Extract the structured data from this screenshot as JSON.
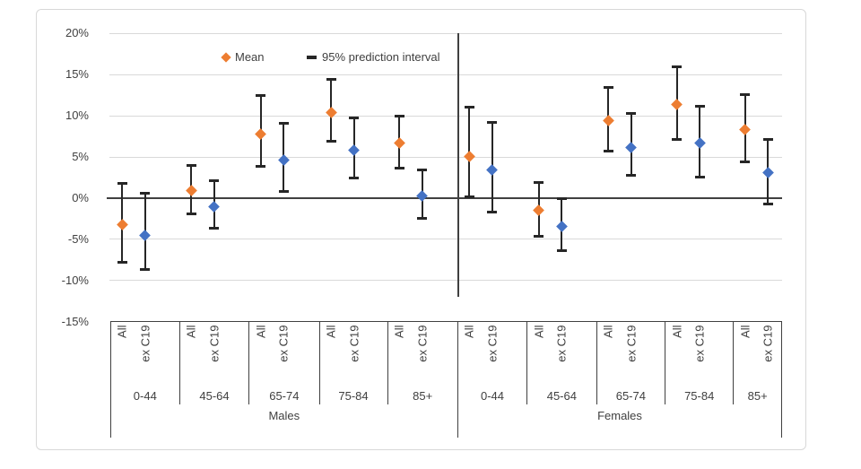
{
  "legend": {
    "mean_label": "Mean",
    "interval_label": "95% prediction interval"
  },
  "y_axis": {
    "tick_labels": [
      "20%",
      "15%",
      "10%",
      "5%",
      "0%",
      "-5%",
      "-10%",
      "-15%"
    ],
    "tick_values": [
      20,
      15,
      10,
      5,
      0,
      -5,
      -10,
      -15
    ]
  },
  "colors": {
    "mean_all": "#ED7D31",
    "mean_ex_c19": "#4472C4",
    "error_bar": "#262626",
    "gridline": "#d9d9d9",
    "axis_line": "#404040",
    "text": "#404040"
  },
  "chart_data": {
    "type": "scatter",
    "title": "",
    "legend_entries": [
      "Mean",
      "95% prediction interval"
    ],
    "legend_position": "top-left-inside",
    "grid": true,
    "ylim": [
      -15,
      20
    ],
    "y_tick_percent": [
      20,
      15,
      10,
      5,
      0,
      -5,
      -10,
      -15
    ],
    "series_categories": [
      "All",
      "ex C19"
    ],
    "panels": [
      {
        "label": "Males",
        "groups": [
          {
            "age": "0-44",
            "points": [
              {
                "category": "All",
                "mean_pct": -3.2,
                "pi_low_pct": -7.8,
                "pi_high_pct": 1.8
              },
              {
                "category": "ex C19",
                "mean_pct": -4.5,
                "pi_low_pct": -8.7,
                "pi_high_pct": 0.6
              }
            ]
          },
          {
            "age": "45-64",
            "points": [
              {
                "category": "All",
                "mean_pct": 0.9,
                "pi_low_pct": -1.9,
                "pi_high_pct": 4.0
              },
              {
                "category": "ex C19",
                "mean_pct": -1.0,
                "pi_low_pct": -3.6,
                "pi_high_pct": 2.1
              }
            ]
          },
          {
            "age": "65-74",
            "points": [
              {
                "category": "All",
                "mean_pct": 7.8,
                "pi_low_pct": 3.9,
                "pi_high_pct": 12.5
              },
              {
                "category": "ex C19",
                "mean_pct": 4.6,
                "pi_low_pct": 0.8,
                "pi_high_pct": 9.1
              }
            ]
          },
          {
            "age": "75-84",
            "points": [
              {
                "category": "All",
                "mean_pct": 10.4,
                "pi_low_pct": 6.9,
                "pi_high_pct": 14.4
              },
              {
                "category": "ex C19",
                "mean_pct": 5.8,
                "pi_low_pct": 2.4,
                "pi_high_pct": 9.7
              }
            ]
          },
          {
            "age": "85+",
            "points": [
              {
                "category": "All",
                "mean_pct": 6.7,
                "pi_low_pct": 3.6,
                "pi_high_pct": 10.0
              },
              {
                "category": "ex C19",
                "mean_pct": 0.3,
                "pi_low_pct": -2.5,
                "pi_high_pct": 3.4
              }
            ]
          }
        ]
      },
      {
        "label": "Females",
        "groups": [
          {
            "age": "0-44",
            "points": [
              {
                "category": "All",
                "mean_pct": 5.1,
                "pi_low_pct": 0.2,
                "pi_high_pct": 11.1
              },
              {
                "category": "ex C19",
                "mean_pct": 3.4,
                "pi_low_pct": -1.7,
                "pi_high_pct": 9.2
              }
            ]
          },
          {
            "age": "45-64",
            "points": [
              {
                "category": "All",
                "mean_pct": -1.5,
                "pi_low_pct": -4.6,
                "pi_high_pct": 1.9
              },
              {
                "category": "ex C19",
                "mean_pct": -3.4,
                "pi_low_pct": -6.4,
                "pi_high_pct": -0.1
              }
            ]
          },
          {
            "age": "65-74",
            "points": [
              {
                "category": "All",
                "mean_pct": 9.4,
                "pi_low_pct": 5.7,
                "pi_high_pct": 13.5
              },
              {
                "category": "ex C19",
                "mean_pct": 6.2,
                "pi_low_pct": 2.8,
                "pi_high_pct": 10.3
              }
            ]
          },
          {
            "age": "75-84",
            "points": [
              {
                "category": "All",
                "mean_pct": 11.4,
                "pi_low_pct": 7.1,
                "pi_high_pct": 16.0
              },
              {
                "category": "ex C19",
                "mean_pct": 6.7,
                "pi_low_pct": 2.6,
                "pi_high_pct": 11.2
              }
            ]
          },
          {
            "age": "85+",
            "points": [
              {
                "category": "All",
                "mean_pct": 8.3,
                "pi_low_pct": 4.4,
                "pi_high_pct": 12.6
              },
              {
                "category": "ex C19",
                "mean_pct": 3.1,
                "pi_low_pct": -0.7,
                "pi_high_pct": 7.1
              }
            ]
          }
        ]
      }
    ]
  }
}
